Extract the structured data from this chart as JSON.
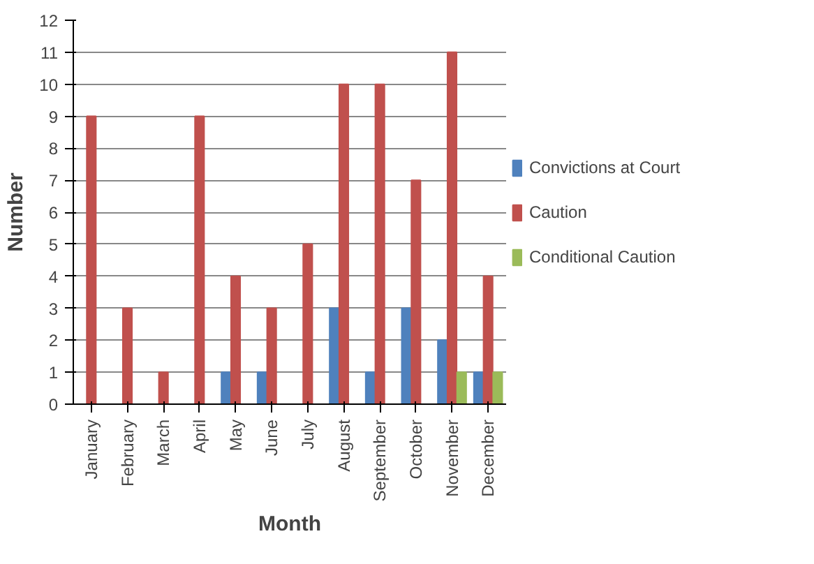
{
  "chart_data": {
    "type": "bar",
    "xlabel": "Month",
    "ylabel": "Number",
    "categories": [
      "January",
      "February",
      "March",
      "April",
      "May",
      "June",
      "July",
      "August",
      "September",
      "October",
      "November",
      "December"
    ],
    "series": [
      {
        "name": "Convictions at Court",
        "color": "#4f81bd",
        "values": [
          0,
          0,
          0,
          0,
          1,
          1,
          0,
          3,
          1,
          3,
          2,
          1
        ]
      },
      {
        "name": "Caution",
        "color": "#c0504d",
        "values": [
          9,
          3,
          1,
          9,
          4,
          3,
          5,
          10,
          10,
          7,
          11,
          4
        ]
      },
      {
        "name": "Conditional Caution",
        "color": "#9bbb59",
        "values": [
          0,
          0,
          0,
          0,
          0,
          0,
          0,
          0,
          0,
          0,
          1,
          1
        ]
      }
    ],
    "ylim": [
      0,
      12
    ],
    "yticks": [
      0,
      1,
      2,
      3,
      4,
      5,
      6,
      7,
      8,
      9,
      10,
      11,
      12
    ],
    "grid": "y",
    "legend": "right"
  }
}
